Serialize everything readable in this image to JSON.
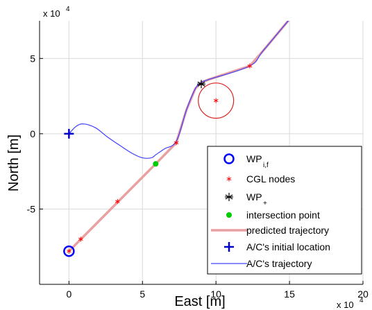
{
  "chart_data": {
    "type": "line",
    "xlabel": "East [m]",
    "ylabel": "North [m]",
    "x_exponent": "x 10",
    "x_exponent_power": "4",
    "y_exponent": "x 10",
    "y_exponent_power": "4",
    "xlim": [
      -2,
      20
    ],
    "ylim": [
      -10,
      7.5
    ],
    "xticks": [
      0,
      5,
      10,
      15,
      20
    ],
    "xtick_labels": [
      "0",
      "5",
      "10",
      "15",
      "20"
    ],
    "yticks": [
      -5,
      0,
      5
    ],
    "ytick_labels": [
      "-5",
      "0",
      "5"
    ],
    "grid": true,
    "legend_position": "bottom-right",
    "legend": [
      {
        "key": "wp",
        "label": "WP",
        "sub": "i,f",
        "sup": ""
      },
      {
        "key": "cgl",
        "label": "CGL nodes",
        "sub": "",
        "sup": ""
      },
      {
        "key": "wpplus",
        "label": "WP",
        "sub": "",
        "sup": "+"
      },
      {
        "key": "intersection",
        "label": "intersection point",
        "sub": "",
        "sup": ""
      },
      {
        "key": "predicted",
        "label": "predicted trajectory",
        "sub": "",
        "sup": ""
      },
      {
        "key": "initial",
        "label": "A/C's initial location",
        "sub": "",
        "sup": ""
      },
      {
        "key": "trajectory",
        "label": "A/C's trajectory",
        "sub": "",
        "sup": ""
      }
    ],
    "colors": {
      "wp": "#0000ff",
      "cgl": "#ff0000",
      "wpplus": "#000000",
      "intersection": "#00cc00",
      "predicted": "#e8a0a0",
      "initial": "#0000cc",
      "trajectory": "#4040ff",
      "circle": "#dd2222"
    },
    "series": {
      "wp_if": [
        [
          0,
          -7.8
        ]
      ],
      "cgl_nodes": [
        [
          0,
          -7.8
        ],
        [
          0.8,
          -7.0
        ],
        [
          3.3,
          -4.5
        ],
        [
          7.3,
          -0.6
        ],
        [
          10.0,
          2.2
        ],
        [
          12.3,
          4.5
        ]
      ],
      "wp_plus": [
        [
          9.0,
          3.3
        ]
      ],
      "intersection_point": [
        [
          5.9,
          -2.0
        ]
      ],
      "predicted_trajectory": [
        [
          0,
          -7.8
        ],
        [
          5.9,
          -2.0
        ],
        [
          7.3,
          -0.6
        ],
        [
          8.0,
          1.6
        ],
        [
          8.6,
          3.0
        ],
        [
          9.0,
          3.4
        ],
        [
          9.5,
          3.6
        ],
        [
          12.3,
          4.5
        ],
        [
          13.2,
          5.5
        ],
        [
          15.0,
          7.6
        ]
      ],
      "initial_location": [
        [
          0,
          0
        ]
      ],
      "ac_trajectory": [
        [
          0,
          0
        ],
        [
          0.5,
          0.5
        ],
        [
          1.0,
          0.65
        ],
        [
          1.8,
          0.4
        ],
        [
          2.6,
          -0.2
        ],
        [
          3.5,
          -0.8
        ],
        [
          4.3,
          -1.3
        ],
        [
          5.0,
          -1.6
        ],
        [
          5.6,
          -1.6
        ],
        [
          5.9,
          -1.4
        ],
        [
          6.5,
          -1.0
        ],
        [
          7.3,
          -0.5
        ],
        [
          8.0,
          1.6
        ],
        [
          8.6,
          3.0
        ],
        [
          9.0,
          3.4
        ],
        [
          9.5,
          3.6
        ],
        [
          12.3,
          4.5
        ],
        [
          13.2,
          5.5
        ],
        [
          15.0,
          7.6
        ]
      ],
      "circle": {
        "center": [
          10.0,
          2.2
        ],
        "radius": 1.2
      }
    }
  }
}
